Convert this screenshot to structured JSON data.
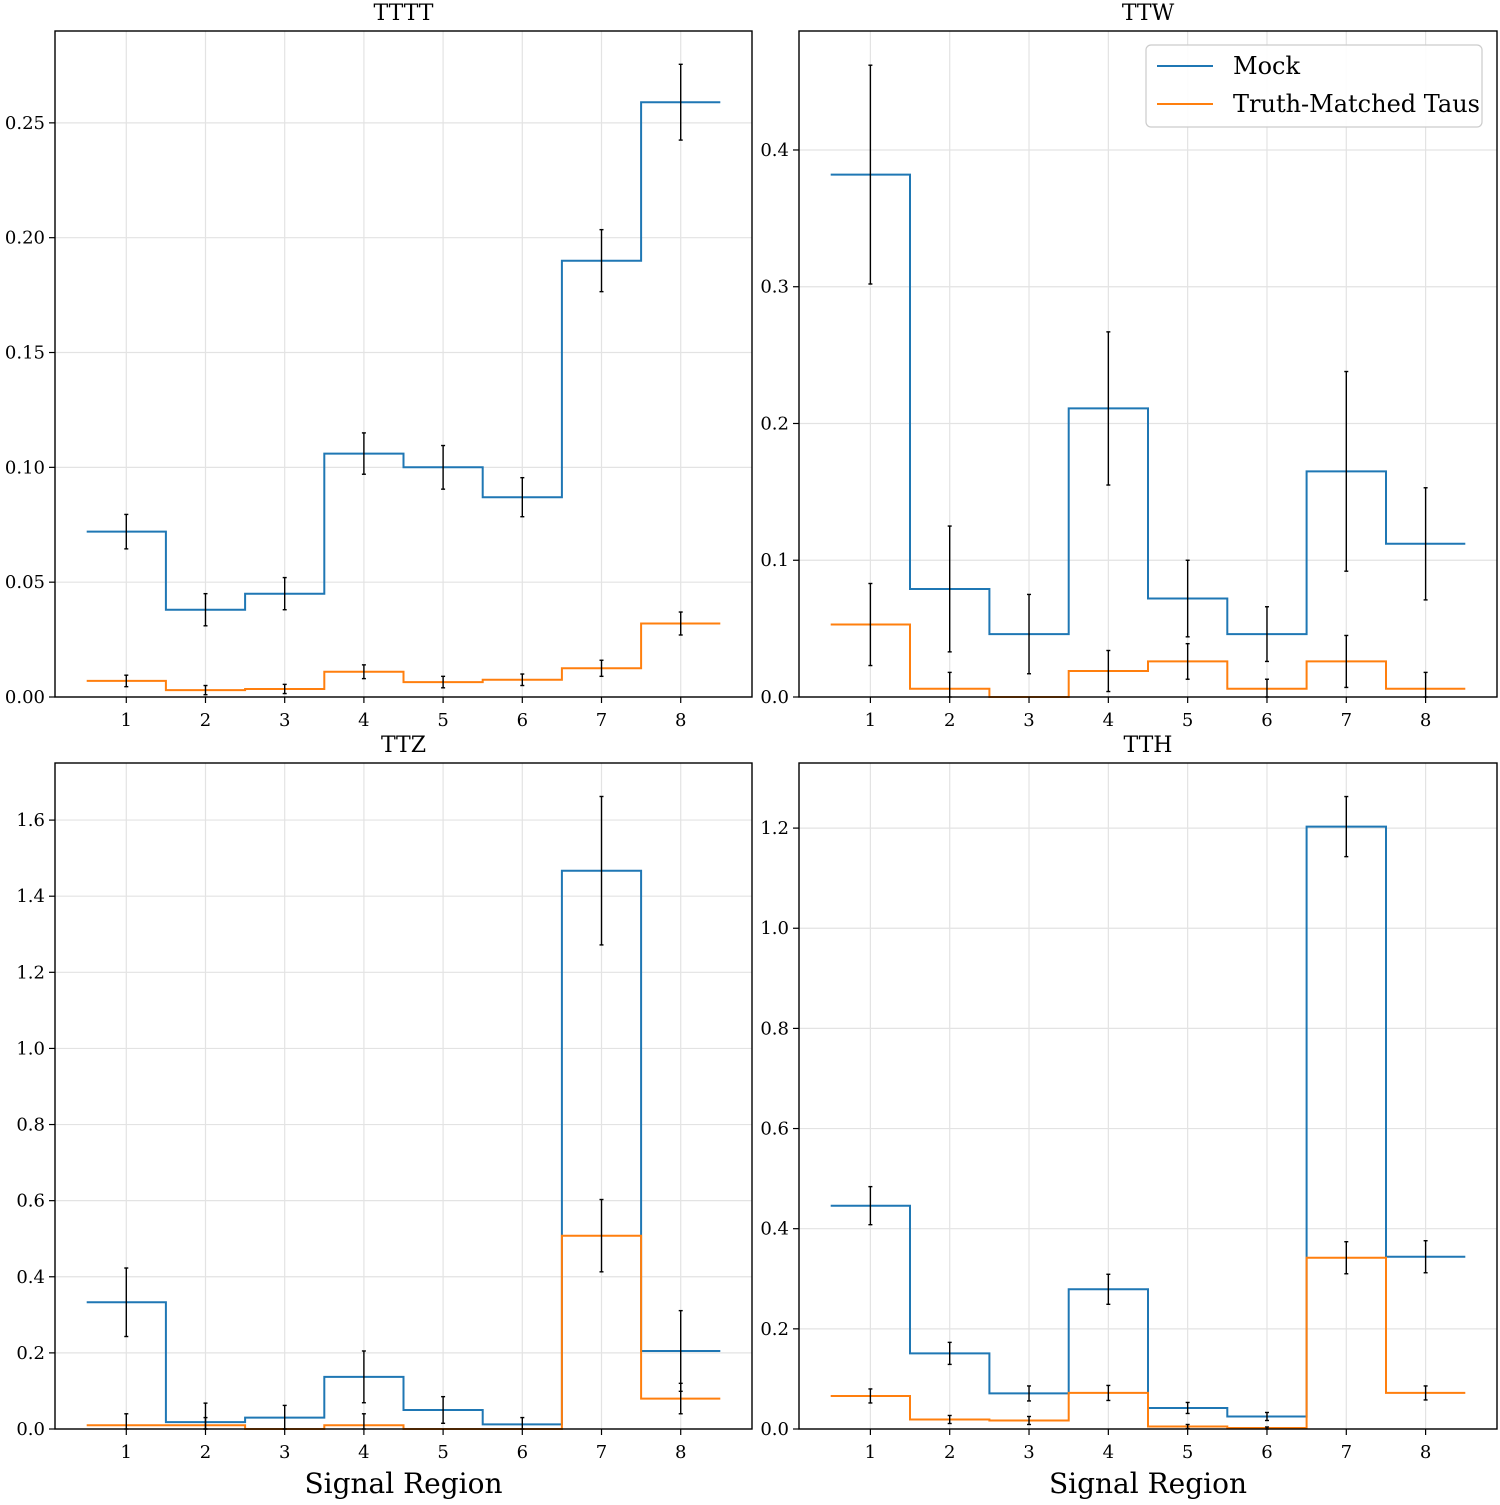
{
  "colors": {
    "mock": "#1f77b4",
    "truth": "#ff7f0e",
    "errorbar": "#000000",
    "grid": "#e3e3e3"
  },
  "chart_data": [
    {
      "type": "step",
      "title": "TTTT",
      "xlabel": "",
      "categories": [
        "1",
        "2",
        "3",
        "4",
        "5",
        "6",
        "7",
        "8"
      ],
      "ylim": [
        0,
        0.29
      ],
      "yticks": [
        "0.00",
        "0.05",
        "0.10",
        "0.15",
        "0.20",
        "0.25"
      ],
      "ytick_values": [
        0,
        0.05,
        0.1,
        0.15,
        0.2,
        0.25
      ],
      "grid": true,
      "series": [
        {
          "name": "Mock",
          "color": "#1f77b4",
          "values": [
            0.072,
            0.038,
            0.045,
            0.106,
            0.1,
            0.087,
            0.19,
            0.259
          ],
          "errors": [
            0.0075,
            0.007,
            0.007,
            0.009,
            0.0095,
            0.0085,
            0.0135,
            0.0165
          ]
        },
        {
          "name": "Truth-Matched Taus",
          "color": "#ff7f0e",
          "values": [
            0.007,
            0.003,
            0.0035,
            0.011,
            0.0065,
            0.0075,
            0.0125,
            0.032
          ],
          "errors": [
            0.0025,
            0.002,
            0.002,
            0.003,
            0.0025,
            0.0025,
            0.0035,
            0.005
          ]
        }
      ]
    },
    {
      "type": "step",
      "title": "TTW",
      "xlabel": "",
      "categories": [
        "1",
        "2",
        "3",
        "4",
        "5",
        "6",
        "7",
        "8"
      ],
      "ylim": [
        0,
        0.487
      ],
      "yticks": [
        "0.0",
        "0.1",
        "0.2",
        "0.3",
        "0.4"
      ],
      "ytick_values": [
        0,
        0.1,
        0.2,
        0.3,
        0.4
      ],
      "grid": true,
      "legend": {
        "position": "top-right",
        "entries": [
          "Mock",
          "Truth-Matched Taus"
        ]
      },
      "series": [
        {
          "name": "Mock",
          "color": "#1f77b4",
          "values": [
            0.382,
            0.079,
            0.046,
            0.211,
            0.072,
            0.046,
            0.165,
            0.112
          ],
          "errors": [
            0.08,
            0.046,
            0.029,
            0.056,
            0.028,
            0.02,
            0.073,
            0.041
          ]
        },
        {
          "name": "Truth-Matched Taus",
          "color": "#ff7f0e",
          "values": [
            0.053,
            0.006,
            0.0,
            0.019,
            0.026,
            0.006,
            0.026,
            0.006
          ],
          "errors": [
            0.03,
            0.012,
            0.0,
            0.015,
            0.013,
            0.007,
            0.019,
            0.012
          ]
        }
      ]
    },
    {
      "type": "step",
      "title": "TTZ",
      "xlabel": "Signal Region",
      "categories": [
        "1",
        "2",
        "3",
        "4",
        "5",
        "6",
        "7",
        "8"
      ],
      "ylim": [
        0,
        1.75
      ],
      "yticks": [
        "0.0",
        "0.2",
        "0.4",
        "0.6",
        "0.8",
        "1.0",
        "1.2",
        "1.4",
        "1.6"
      ],
      "ytick_values": [
        0,
        0.2,
        0.4,
        0.6,
        0.8,
        1.0,
        1.2,
        1.4,
        1.6
      ],
      "grid": true,
      "series": [
        {
          "name": "Mock",
          "color": "#1f77b4",
          "values": [
            0.333,
            0.018,
            0.03,
            0.137,
            0.05,
            0.012,
            1.467,
            0.205
          ],
          "errors": [
            0.09,
            0.05,
            0.032,
            0.068,
            0.035,
            0.018,
            0.195,
            0.106
          ]
        },
        {
          "name": "Truth-Matched Taus",
          "color": "#ff7f0e",
          "values": [
            0.01,
            0.01,
            0.0,
            0.01,
            0.0,
            0.0,
            0.508,
            0.08
          ],
          "errors": [
            0.03,
            0.02,
            0.0,
            0.03,
            0.0,
            0.0,
            0.095,
            0.04
          ]
        }
      ]
    },
    {
      "type": "step",
      "title": "TTH",
      "xlabel": "Signal Region",
      "categories": [
        "1",
        "2",
        "3",
        "4",
        "5",
        "6",
        "7",
        "8"
      ],
      "ylim": [
        0,
        1.33
      ],
      "yticks": [
        "0.0",
        "0.2",
        "0.4",
        "0.6",
        "0.8",
        "1.0",
        "1.2"
      ],
      "ytick_values": [
        0,
        0.2,
        0.4,
        0.6,
        0.8,
        1.0,
        1.2
      ],
      "grid": true,
      "series": [
        {
          "name": "Mock",
          "color": "#1f77b4",
          "values": [
            0.446,
            0.151,
            0.071,
            0.279,
            0.042,
            0.025,
            1.203,
            0.344
          ],
          "errors": [
            0.038,
            0.022,
            0.015,
            0.03,
            0.011,
            0.008,
            0.06,
            0.032
          ]
        },
        {
          "name": "Truth-Matched Taus",
          "color": "#ff7f0e",
          "values": [
            0.066,
            0.019,
            0.017,
            0.072,
            0.005,
            0.002,
            0.342,
            0.072
          ],
          "errors": [
            0.014,
            0.008,
            0.008,
            0.015,
            0.004,
            0.002,
            0.032,
            0.014
          ]
        }
      ]
    }
  ]
}
